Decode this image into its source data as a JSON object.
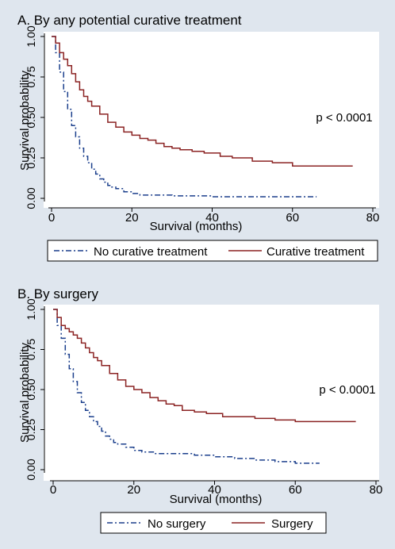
{
  "colors": {
    "background": "#dfe6ee",
    "plot_area": "#ffffff",
    "axis": "#000000",
    "series_dashed": "#1b3f8c",
    "series_solid": "#8b2323"
  },
  "chart_data": [
    {
      "type": "line",
      "title": "A. By any potential curative treatment",
      "xlabel": "Survival (months)",
      "ylabel": "Survival probability",
      "xlim": [
        0,
        80
      ],
      "ylim": [
        0,
        1
      ],
      "x_ticks": [
        "0",
        "20",
        "40",
        "60",
        "80"
      ],
      "y_ticks": [
        "0.00",
        "0.25",
        "0.50",
        "0.75",
        "1.00"
      ],
      "annotation": "p < 0.0001",
      "legend_position": "bottom",
      "grid": false,
      "step": true,
      "series": [
        {
          "name": "No curative treatment",
          "style": "dash-dot",
          "x": [
            0,
            1,
            2,
            3,
            4,
            5,
            6,
            7,
            8,
            9,
            10,
            11,
            12,
            13,
            14,
            15,
            16,
            18,
            20,
            22,
            25,
            30,
            40,
            50,
            60,
            66
          ],
          "y": [
            1.0,
            0.9,
            0.78,
            0.66,
            0.55,
            0.45,
            0.38,
            0.31,
            0.26,
            0.22,
            0.18,
            0.15,
            0.12,
            0.1,
            0.08,
            0.07,
            0.06,
            0.04,
            0.03,
            0.02,
            0.02,
            0.015,
            0.01,
            0.01,
            0.01,
            0.01
          ]
        },
        {
          "name": "Curative treatment",
          "style": "solid",
          "x": [
            0,
            1,
            2,
            3,
            4,
            5,
            6,
            7,
            8,
            9,
            10,
            12,
            14,
            16,
            18,
            20,
            22,
            24,
            26,
            28,
            30,
            32,
            35,
            38,
            42,
            45,
            50,
            55,
            60,
            75
          ],
          "y": [
            1.0,
            0.96,
            0.9,
            0.86,
            0.82,
            0.77,
            0.72,
            0.67,
            0.63,
            0.6,
            0.57,
            0.52,
            0.47,
            0.44,
            0.41,
            0.39,
            0.37,
            0.36,
            0.34,
            0.32,
            0.31,
            0.3,
            0.29,
            0.28,
            0.26,
            0.25,
            0.23,
            0.22,
            0.2,
            0.2
          ]
        }
      ]
    },
    {
      "type": "line",
      "title": "B. By surgery",
      "xlabel": "Survival (months)",
      "ylabel": "Survival probability",
      "xlim": [
        0,
        80
      ],
      "ylim": [
        0,
        1
      ],
      "x_ticks": [
        "0",
        "20",
        "40",
        "60",
        "80"
      ],
      "y_ticks": [
        "0.00",
        "0.25",
        "0.50",
        "0.75",
        "1.00"
      ],
      "annotation": "p < 0.0001",
      "legend_position": "bottom",
      "grid": false,
      "step": true,
      "series": [
        {
          "name": "No surgery",
          "style": "dash-dot",
          "x": [
            0,
            1,
            2,
            3,
            4,
            5,
            6,
            7,
            8,
            9,
            10,
            11,
            12,
            13,
            14,
            15,
            16,
            18,
            20,
            22,
            25,
            30,
            35,
            40,
            45,
            50,
            55,
            60,
            66
          ],
          "y": [
            1.0,
            0.9,
            0.82,
            0.72,
            0.63,
            0.55,
            0.48,
            0.42,
            0.37,
            0.33,
            0.3,
            0.27,
            0.24,
            0.21,
            0.19,
            0.17,
            0.16,
            0.14,
            0.12,
            0.11,
            0.1,
            0.1,
            0.09,
            0.08,
            0.07,
            0.06,
            0.05,
            0.04,
            0.04
          ]
        },
        {
          "name": "Surgery",
          "style": "solid",
          "x": [
            0,
            1,
            2,
            3,
            4,
            5,
            6,
            7,
            8,
            9,
            10,
            11,
            12,
            14,
            16,
            18,
            20,
            22,
            24,
            26,
            28,
            30,
            32,
            35,
            38,
            42,
            45,
            50,
            55,
            60,
            75
          ],
          "y": [
            1.0,
            0.95,
            0.9,
            0.88,
            0.86,
            0.84,
            0.82,
            0.79,
            0.76,
            0.73,
            0.7,
            0.68,
            0.65,
            0.6,
            0.56,
            0.52,
            0.5,
            0.48,
            0.45,
            0.43,
            0.41,
            0.4,
            0.37,
            0.36,
            0.35,
            0.33,
            0.33,
            0.32,
            0.31,
            0.3,
            0.3
          ]
        }
      ]
    }
  ]
}
